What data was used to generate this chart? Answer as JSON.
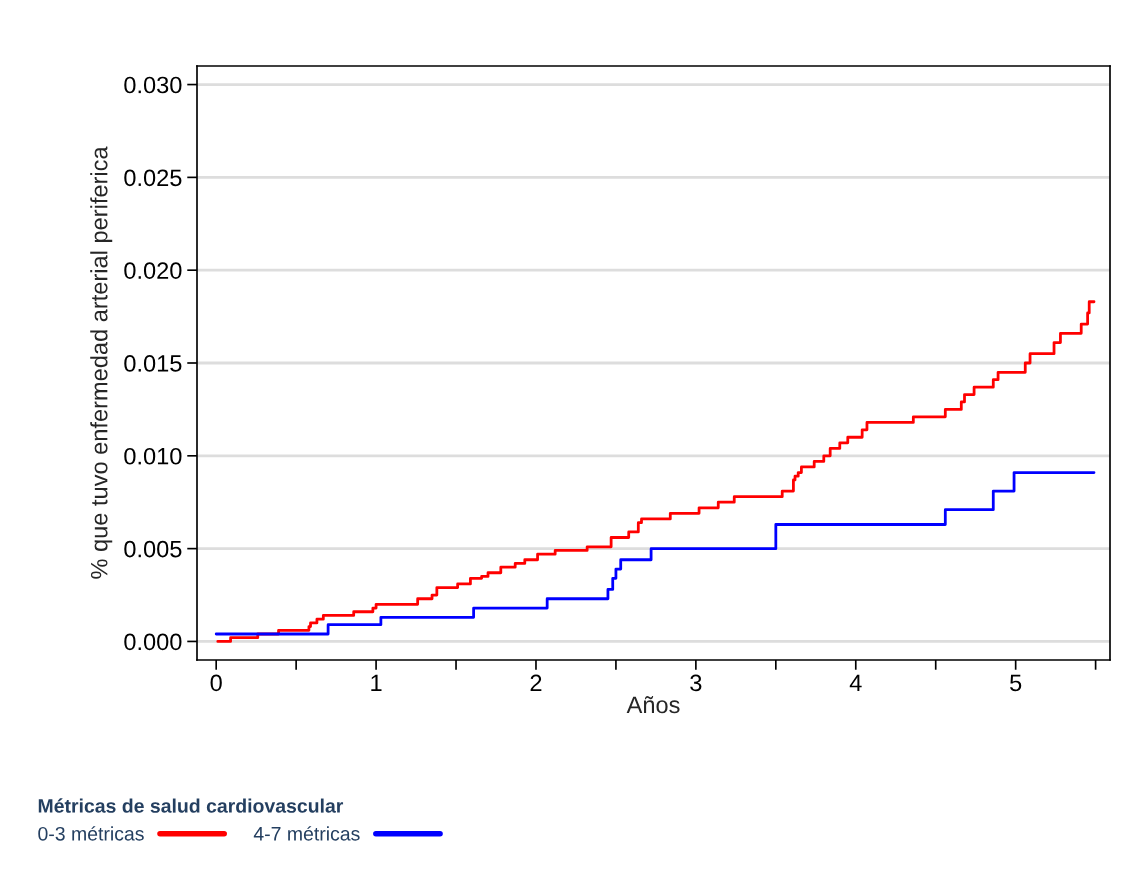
{
  "chart_data": {
    "type": "step",
    "xlabel": "Años",
    "ylabel": "% que tuvo enfermedad arterial periferica",
    "legend_title": "Métricas de salud cardiovascular",
    "xlim": [
      -0.12,
      5.59
    ],
    "ylim": [
      -0.001,
      0.031
    ],
    "xticks": [
      0,
      {
        "value": 0.5,
        "label": null
      },
      1,
      {
        "value": 1.5,
        "label": null
      },
      2,
      {
        "value": 2.5,
        "label": null
      },
      3,
      {
        "value": 3.5,
        "label": null
      },
      4,
      {
        "value": 4.5,
        "label": null
      },
      5,
      {
        "value": 5.5,
        "label": null
      }
    ],
    "yticks": [
      {
        "value": 0,
        "label": "0.000"
      },
      {
        "value": 0.005,
        "label": "0.005"
      },
      {
        "value": 0.01,
        "label": "0.010"
      },
      {
        "value": 0.015,
        "label": "0.015"
      },
      {
        "value": 0.02,
        "label": "0.020"
      },
      {
        "value": 0.025,
        "label": "0.025"
      },
      {
        "value": 0.03,
        "label": "0.030"
      }
    ],
    "grid": "y",
    "legend": "bottom",
    "marker": "none",
    "line_style": "solid",
    "series": [
      {
        "name": "0-3 métricas",
        "color": "#ff0000",
        "x": [
          0.01,
          0.09,
          0.26,
          0.39,
          0.58,
          0.59,
          0.63,
          0.67,
          0.86,
          0.98,
          1.0,
          1.26,
          1.35,
          1.38,
          1.51,
          1.59,
          1.66,
          1.7,
          1.78,
          1.87,
          1.93,
          2.01,
          2.12,
          2.32,
          2.47,
          2.58,
          2.64,
          2.66,
          2.84,
          3.02,
          3.14,
          3.24,
          3.54,
          3.61,
          3.62,
          3.64,
          3.66,
          3.74,
          3.8,
          3.84,
          3.9,
          3.95,
          4.04,
          4.07,
          4.36,
          4.56,
          4.66,
          4.68,
          4.74,
          4.86,
          4.89,
          5.06,
          5.09,
          5.24,
          5.28,
          5.41,
          5.45,
          5.46,
          5.49
        ],
        "values": [
          0.0,
          0.0002,
          0.0004,
          0.0006,
          0.0008,
          0.001,
          0.0012,
          0.0014,
          0.0016,
          0.0018,
          0.002,
          0.0023,
          0.0025,
          0.0029,
          0.0031,
          0.0034,
          0.0035,
          0.0037,
          0.004,
          0.0042,
          0.0044,
          0.0047,
          0.0049,
          0.0051,
          0.0056,
          0.0059,
          0.0064,
          0.0066,
          0.0069,
          0.0072,
          0.0075,
          0.0078,
          0.0081,
          0.0087,
          0.0089,
          0.0091,
          0.0094,
          0.0097,
          0.01,
          0.0104,
          0.0107,
          0.011,
          0.0114,
          0.0118,
          0.0121,
          0.0125,
          0.0129,
          0.0133,
          0.0137,
          0.0141,
          0.0145,
          0.015,
          0.0155,
          0.0161,
          0.0166,
          0.0171,
          0.0177,
          0.0183,
          0.0183
        ]
      },
      {
        "name": "4-7 métricas",
        "color": "#0000ff",
        "x": [
          0.0,
          0.7,
          1.03,
          1.61,
          2.07,
          2.45,
          2.48,
          2.5,
          2.53,
          2.72,
          3.5,
          4.56,
          4.86,
          4.99,
          5.49
        ],
        "values": [
          0.0004,
          0.0009,
          0.0013,
          0.0018,
          0.0023,
          0.0028,
          0.0034,
          0.0039,
          0.0044,
          0.005,
          0.0063,
          0.0071,
          0.0081,
          0.0091,
          0.0091
        ]
      }
    ]
  }
}
